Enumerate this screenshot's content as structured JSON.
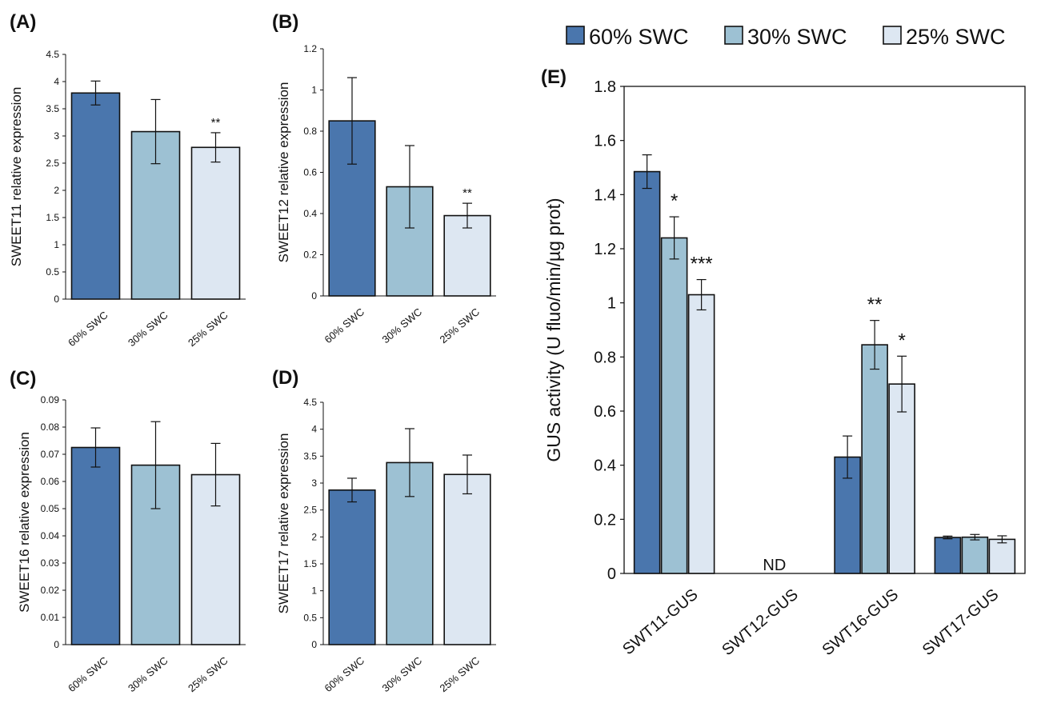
{
  "colors": {
    "s60": "#4a76ad",
    "s30": "#9dc1d3",
    "s25": "#dde7f2",
    "stroke": "#111111"
  },
  "legend": [
    {
      "label": "60% SWC",
      "color_key": "s60"
    },
    {
      "label": "30% SWC",
      "color_key": "s30"
    },
    {
      "label": "25% SWC",
      "color_key": "s25"
    }
  ],
  "chart_data": [
    {
      "panel": "(A)",
      "type": "bar",
      "ylabel": "SWEET11 relative expression",
      "ylim": [
        0,
        4.5
      ],
      "yticks": [
        "0",
        "0.5",
        "1",
        "1.5",
        "2",
        "2.5",
        "3",
        "3.5",
        "4",
        "4.5"
      ],
      "categories": [
        "60% SWC",
        "30% SWC",
        "25% SWC"
      ],
      "values": [
        3.79,
        3.08,
        2.79
      ],
      "errors": [
        0.22,
        0.59,
        0.27
      ],
      "annotations": [
        "",
        "",
        "**"
      ]
    },
    {
      "panel": "(B)",
      "type": "bar",
      "ylabel": "SWEET12 relative expression",
      "ylim": [
        0,
        1.2
      ],
      "yticks": [
        "0",
        "0.2",
        "0.4",
        "0.6",
        "0.8",
        "1",
        "1.2"
      ],
      "categories": [
        "60% SWC",
        "30% SWC",
        "25% SWC"
      ],
      "values": [
        0.85,
        0.53,
        0.39
      ],
      "errors": [
        0.21,
        0.2,
        0.06
      ],
      "annotations": [
        "",
        "",
        "**"
      ]
    },
    {
      "panel": "(C)",
      "type": "bar",
      "ylabel": "SWEET16 relative expression",
      "ylim": [
        0,
        0.09
      ],
      "yticks": [
        "0",
        "0.01",
        "0.02",
        "0.03",
        "0.04",
        "0.05",
        "0.06",
        "0.07",
        "0.08",
        "0.09"
      ],
      "categories": [
        "60% SWC",
        "30% SWC",
        "25% SWC"
      ],
      "values": [
        0.0725,
        0.066,
        0.0625
      ],
      "errors": [
        0.0072,
        0.016,
        0.0115
      ],
      "annotations": [
        "",
        "",
        ""
      ]
    },
    {
      "panel": "(D)",
      "type": "bar",
      "ylabel": "SWEET17 relative expression",
      "ylim": [
        0,
        4.5
      ],
      "yticks": [
        "0",
        "0.5",
        "1",
        "1.5",
        "2",
        "2.5",
        "3",
        "3.5",
        "4",
        "4.5"
      ],
      "categories": [
        "60% SWC",
        "30% SWC",
        "25% SWC"
      ],
      "values": [
        2.87,
        3.38,
        3.16
      ],
      "errors": [
        0.22,
        0.63,
        0.36
      ],
      "annotations": [
        "",
        "",
        ""
      ]
    },
    {
      "panel": "(E)",
      "type": "bar",
      "ylabel": "GUS activity (U fluo/min/µg prot)",
      "ylim": [
        0,
        1.8
      ],
      "yticks": [
        "0",
        "0.2",
        "0.4",
        "0.6",
        "0.8",
        "1",
        "1.2",
        "1.4",
        "1.6",
        "1.8"
      ],
      "categories": [
        "SWT11-GUS",
        "SWT12-GUS",
        "SWT16-GUS",
        "SWT17-GUS"
      ],
      "series": [
        {
          "name": "60% SWC",
          "values": [
            1.485,
            null,
            0.43,
            0.133
          ],
          "errors": [
            0.062,
            null,
            0.078,
            0.005
          ],
          "annotations": [
            "",
            "",
            "",
            ""
          ]
        },
        {
          "name": "30% SWC",
          "values": [
            1.24,
            null,
            0.845,
            0.134
          ],
          "errors": [
            0.078,
            null,
            0.09,
            0.01
          ],
          "annotations": [
            "*",
            "",
            "**",
            ""
          ]
        },
        {
          "name": "25% SWC",
          "values": [
            1.03,
            null,
            0.7,
            0.126
          ],
          "errors": [
            0.056,
            null,
            0.103,
            0.013
          ],
          "annotations": [
            "***",
            "",
            "*",
            ""
          ]
        }
      ],
      "category_notes": [
        "",
        "ND",
        "",
        ""
      ]
    }
  ]
}
